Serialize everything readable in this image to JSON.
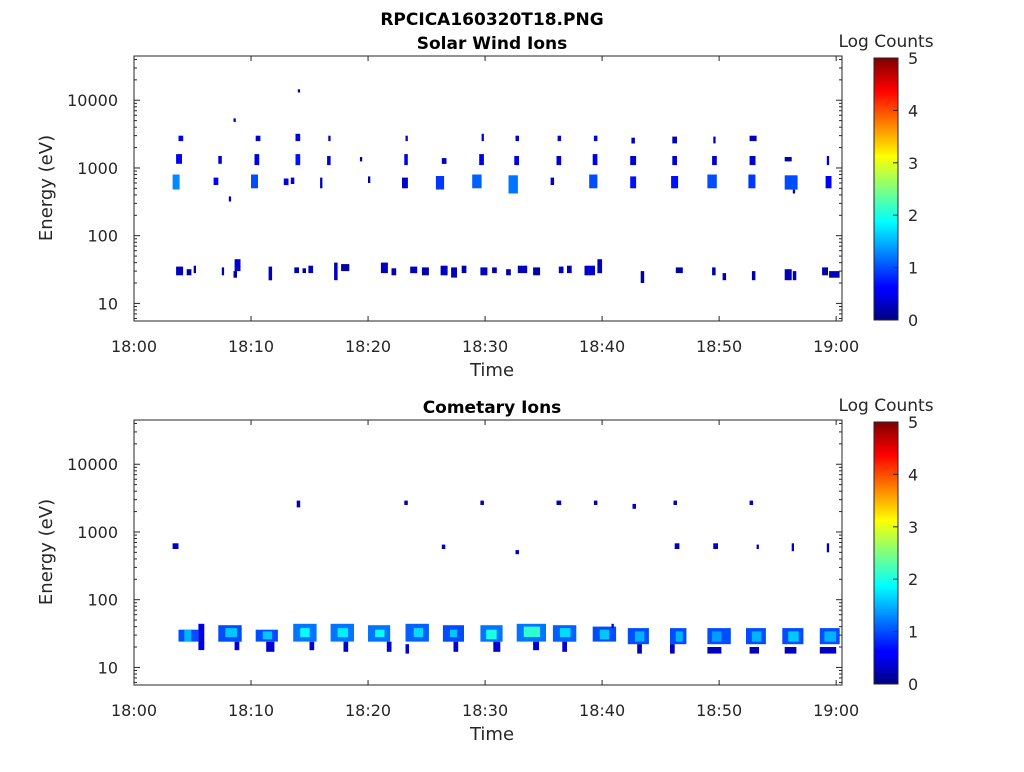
{
  "figure": {
    "title": "RPCICA160320T18.PNG"
  },
  "colorbar": {
    "label": "Log Counts",
    "min": 0,
    "max": 5,
    "ticks": [
      "0",
      "1",
      "2",
      "3",
      "4",
      "5"
    ],
    "colormap": "jet"
  },
  "chart_data": [
    {
      "type": "heatmap",
      "title": "Solar Wind Ions",
      "xlabel": "Time",
      "ylabel": "Energy (eV)",
      "x_ticks": [
        "18:00",
        "18:10",
        "18:20",
        "18:30",
        "18:40",
        "18:50",
        "19:00"
      ],
      "xlim_minutes": [
        0,
        60.5
      ],
      "y_scale": "log",
      "ylim": [
        5.5,
        45000
      ],
      "y_ticks": [
        {
          "value": 10,
          "label": "10"
        },
        {
          "value": 100,
          "label": "100"
        },
        {
          "value": 1000,
          "label": "1000"
        },
        {
          "value": 10000,
          "label": "10000"
        }
      ],
      "color_range": [
        0,
        5
      ],
      "cells": [
        [
          3.3,
          3.9,
          480,
          800,
          1.3
        ],
        [
          3.6,
          4.1,
          1150,
          1600,
          0.6
        ],
        [
          3.8,
          4.2,
          2500,
          3000,
          0.5
        ],
        [
          3.6,
          4.2,
          26,
          35,
          0.3
        ],
        [
          4.5,
          4.9,
          26,
          32,
          0.2
        ],
        [
          5.1,
          5.3,
          28,
          36,
          0.2
        ],
        [
          6.8,
          7.2,
          560,
          720,
          0.6
        ],
        [
          7.2,
          7.5,
          1150,
          1500,
          0.4
        ],
        [
          7.5,
          7.7,
          26,
          34,
          0.2
        ],
        [
          8.1,
          8.3,
          320,
          380,
          0.3
        ],
        [
          8.5,
          8.7,
          4800,
          5400,
          0.2
        ],
        [
          8.6,
          9.1,
          30,
          45,
          0.4
        ],
        [
          8.5,
          8.8,
          24,
          30,
          0.2
        ],
        [
          10.0,
          10.6,
          500,
          800,
          1.0
        ],
        [
          10.3,
          10.7,
          1100,
          1600,
          0.5
        ],
        [
          10.4,
          10.8,
          2500,
          3000,
          0.4
        ],
        [
          11.5,
          11.8,
          22,
          35,
          0.3
        ],
        [
          12.8,
          13.2,
          560,
          700,
          0.5
        ],
        [
          13.4,
          13.7,
          580,
          720,
          0.4
        ],
        [
          13.8,
          14.2,
          1100,
          1600,
          0.7
        ],
        [
          13.8,
          14.2,
          2500,
          3200,
          0.5
        ],
        [
          14.0,
          14.2,
          13000,
          14500,
          0.2
        ],
        [
          13.7,
          14.1,
          28,
          34,
          0.2
        ],
        [
          14.4,
          14.7,
          28,
          33,
          0.2
        ],
        [
          14.9,
          15.3,
          28,
          36,
          0.3
        ],
        [
          15.9,
          16.1,
          500,
          720,
          0.3
        ],
        [
          16.5,
          16.8,
          1100,
          1500,
          0.4
        ],
        [
          16.6,
          16.8,
          2500,
          3000,
          0.3
        ],
        [
          17.1,
          17.4,
          22,
          40,
          0.3
        ],
        [
          17.7,
          18.4,
          30,
          38,
          0.2
        ],
        [
          19.3,
          19.5,
          1250,
          1450,
          0.2
        ],
        [
          20.0,
          20.2,
          600,
          750,
          0.2
        ],
        [
          21.1,
          21.7,
          28,
          40,
          0.3
        ],
        [
          22.0,
          22.4,
          26,
          33,
          0.2
        ],
        [
          22.9,
          23.4,
          500,
          720,
          0.4
        ],
        [
          23.1,
          23.4,
          1100,
          1600,
          0.5
        ],
        [
          23.2,
          23.4,
          2500,
          3000,
          0.4
        ],
        [
          23.6,
          24.2,
          28,
          35,
          0.3
        ],
        [
          24.6,
          25.2,
          26,
          34,
          0.2
        ],
        [
          25.8,
          26.5,
          480,
          760,
          0.9
        ],
        [
          26.3,
          26.7,
          1150,
          1400,
          0.3
        ],
        [
          26.2,
          26.8,
          26,
          36,
          0.3
        ],
        [
          27.1,
          27.6,
          24,
          34,
          0.3
        ],
        [
          28.0,
          28.4,
          28,
          36,
          0.2
        ],
        [
          28.9,
          29.7,
          500,
          800,
          1.1
        ],
        [
          29.5,
          29.9,
          1100,
          1600,
          0.5
        ],
        [
          29.7,
          29.9,
          2500,
          3200,
          0.4
        ],
        [
          29.6,
          30.2,
          26,
          34,
          0.3
        ],
        [
          30.6,
          31.0,
          28,
          34,
          0.2
        ],
        [
          32.0,
          32.8,
          420,
          780,
          1.2
        ],
        [
          32.5,
          32.9,
          1100,
          1500,
          0.5
        ],
        [
          32.6,
          32.9,
          2500,
          3000,
          0.4
        ],
        [
          31.8,
          32.2,
          26,
          32,
          0.2
        ],
        [
          32.8,
          33.6,
          28,
          36,
          0.3
        ],
        [
          34.1,
          34.7,
          26,
          34,
          0.2
        ],
        [
          36.1,
          36.5,
          1100,
          1500,
          0.4
        ],
        [
          36.2,
          36.5,
          2500,
          3000,
          0.4
        ],
        [
          35.6,
          35.9,
          560,
          720,
          0.3
        ],
        [
          36.3,
          36.7,
          28,
          35,
          0.3
        ],
        [
          37.0,
          37.4,
          28,
          36,
          0.3
        ],
        [
          38.9,
          39.6,
          500,
          800,
          1.0
        ],
        [
          39.2,
          39.6,
          1100,
          1600,
          0.5
        ],
        [
          39.3,
          39.6,
          2500,
          3000,
          0.4
        ],
        [
          38.5,
          39.4,
          26,
          36,
          0.4
        ],
        [
          39.6,
          40.0,
          28,
          45,
          0.3
        ],
        [
          42.4,
          42.9,
          500,
          750,
          0.7
        ],
        [
          42.4,
          42.9,
          1100,
          1500,
          0.4
        ],
        [
          42.5,
          42.8,
          2300,
          2800,
          0.3
        ],
        [
          43.3,
          43.6,
          20,
          30,
          0.2
        ],
        [
          45.9,
          46.5,
          500,
          760,
          0.7
        ],
        [
          46.0,
          46.4,
          1100,
          1500,
          0.4
        ],
        [
          46.0,
          46.4,
          2300,
          2900,
          0.3
        ],
        [
          46.3,
          46.9,
          28,
          34,
          0.2
        ],
        [
          49.0,
          49.8,
          500,
          800,
          1.0
        ],
        [
          49.4,
          49.8,
          1100,
          1500,
          0.4
        ],
        [
          49.5,
          49.7,
          2300,
          2900,
          0.3
        ],
        [
          49.4,
          49.7,
          26,
          34,
          0.2
        ],
        [
          50.3,
          50.6,
          22,
          28,
          0.2
        ],
        [
          52.5,
          53.1,
          500,
          800,
          0.9
        ],
        [
          52.6,
          53.1,
          1100,
          1500,
          0.4
        ],
        [
          52.6,
          53.2,
          2500,
          3000,
          0.3
        ],
        [
          52.8,
          53.1,
          22,
          30,
          0.2
        ],
        [
          55.6,
          56.7,
          480,
          780,
          1.0
        ],
        [
          55.6,
          56.2,
          1250,
          1450,
          0.2
        ],
        [
          56.3,
          56.5,
          420,
          480,
          0.3
        ],
        [
          55.6,
          56.2,
          22,
          32,
          0.3
        ],
        [
          56.3,
          56.6,
          22,
          30,
          0.3
        ],
        [
          59.1,
          59.6,
          500,
          760,
          0.6
        ],
        [
          59.2,
          59.4,
          1100,
          1500,
          0.3
        ],
        [
          58.8,
          59.3,
          26,
          34,
          0.2
        ],
        [
          59.4,
          60.3,
          24,
          30,
          0.3
        ]
      ]
    },
    {
      "type": "heatmap",
      "title": "Cometary Ions",
      "xlabel": "Time",
      "ylabel": "Energy (eV)",
      "x_ticks": [
        "18:00",
        "18:10",
        "18:20",
        "18:30",
        "18:40",
        "18:50",
        "19:00"
      ],
      "xlim_minutes": [
        0,
        60.5
      ],
      "y_scale": "log",
      "ylim": [
        5.5,
        45000
      ],
      "y_ticks": [
        {
          "value": 10,
          "label": "10"
        },
        {
          "value": 100,
          "label": "100"
        },
        {
          "value": 1000,
          "label": "1000"
        },
        {
          "value": 10000,
          "label": "10000"
        }
      ],
      "color_range": [
        0,
        5
      ],
      "cells": [
        [
          3.3,
          3.8,
          560,
          680,
          0.3
        ],
        [
          13.9,
          14.2,
          2300,
          2900,
          0.3
        ],
        [
          23.1,
          23.4,
          2500,
          2900,
          0.3
        ],
        [
          29.6,
          29.9,
          2500,
          2900,
          0.3
        ],
        [
          36.1,
          36.5,
          2500,
          2900,
          0.3
        ],
        [
          39.3,
          39.6,
          2500,
          2900,
          0.3
        ],
        [
          42.6,
          42.9,
          2200,
          2600,
          0.3
        ],
        [
          46.1,
          46.4,
          2500,
          2900,
          0.3
        ],
        [
          52.6,
          52.9,
          2500,
          2900,
          0.3
        ],
        [
          26.3,
          26.6,
          560,
          650,
          0.3
        ],
        [
          32.6,
          32.9,
          470,
          540,
          0.3
        ],
        [
          46.2,
          46.6,
          560,
          680,
          0.3
        ],
        [
          49.5,
          49.9,
          560,
          680,
          0.3
        ],
        [
          53.2,
          53.4,
          560,
          650,
          0.3
        ],
        [
          56.2,
          56.4,
          520,
          680,
          0.3
        ],
        [
          59.2,
          59.4,
          500,
          680,
          0.3
        ],
        [
          3.8,
          5.5,
          24,
          36,
          1.0
        ],
        [
          4.3,
          4.9,
          24,
          36,
          1.5
        ],
        [
          5.5,
          6.0,
          18,
          44,
          0.5
        ],
        [
          7.2,
          9.2,
          24,
          42,
          1.0
        ],
        [
          7.8,
          8.8,
          28,
          38,
          1.6
        ],
        [
          8.6,
          9.0,
          18,
          24,
          0.4
        ],
        [
          10.4,
          12.3,
          24,
          36,
          1.0
        ],
        [
          11.0,
          11.8,
          26,
          34,
          1.6
        ],
        [
          11.3,
          12.0,
          17,
          24,
          0.4
        ],
        [
          13.6,
          15.6,
          24,
          44,
          1.2
        ],
        [
          14.2,
          15.0,
          28,
          38,
          1.9
        ],
        [
          15.0,
          15.4,
          18,
          24,
          0.4
        ],
        [
          16.8,
          18.8,
          24,
          44,
          1.2
        ],
        [
          17.4,
          18.3,
          28,
          38,
          1.8
        ],
        [
          17.9,
          18.3,
          17,
          24,
          0.4
        ],
        [
          20.0,
          21.9,
          24,
          42,
          1.2
        ],
        [
          20.6,
          21.4,
          28,
          36,
          1.9
        ],
        [
          21.6,
          22.0,
          17,
          24,
          0.4
        ],
        [
          23.2,
          25.2,
          24,
          44,
          1.1
        ],
        [
          23.9,
          24.7,
          28,
          38,
          1.7
        ],
        [
          23.2,
          23.5,
          16,
          22,
          0.4
        ],
        [
          26.4,
          28.2,
          24,
          42,
          1.0
        ],
        [
          27.0,
          27.6,
          28,
          36,
          1.6
        ],
        [
          27.3,
          27.7,
          17,
          24,
          0.4
        ],
        [
          29.6,
          31.5,
          24,
          42,
          1.2
        ],
        [
          30.1,
          31.0,
          26,
          36,
          2.0
        ],
        [
          30.7,
          31.3,
          17,
          24,
          0.4
        ],
        [
          32.7,
          35.2,
          24,
          44,
          1.2
        ],
        [
          33.3,
          34.7,
          28,
          40,
          2.1
        ],
        [
          34.1,
          34.6,
          18,
          24,
          0.4
        ],
        [
          35.8,
          37.8,
          24,
          42,
          1.1
        ],
        [
          36.4,
          37.3,
          28,
          38,
          1.7
        ],
        [
          36.6,
          37.0,
          17,
          24,
          0.4
        ],
        [
          39.2,
          41.2,
          24,
          40,
          1.0
        ],
        [
          39.8,
          40.6,
          26,
          36,
          1.6
        ],
        [
          40.8,
          41.0,
          38,
          44,
          0.4
        ],
        [
          42.2,
          44.0,
          22,
          38,
          1.0
        ],
        [
          42.8,
          43.6,
          24,
          34,
          1.5
        ],
        [
          43.0,
          43.4,
          16,
          22,
          0.3
        ],
        [
          45.8,
          47.2,
          22,
          38,
          1.0
        ],
        [
          46.3,
          46.9,
          24,
          34,
          1.5
        ],
        [
          45.8,
          46.2,
          16,
          22,
          0.3
        ],
        [
          49.0,
          51.0,
          22,
          38,
          1.0
        ],
        [
          49.4,
          50.2,
          24,
          34,
          1.4
        ],
        [
          49.0,
          50.2,
          16,
          20,
          0.3
        ],
        [
          52.3,
          54.0,
          22,
          38,
          1.0
        ],
        [
          52.8,
          53.6,
          24,
          34,
          1.5
        ],
        [
          52.6,
          53.4,
          16,
          20,
          0.3
        ],
        [
          55.4,
          57.2,
          22,
          38,
          1.0
        ],
        [
          55.9,
          56.8,
          24,
          34,
          1.6
        ],
        [
          55.6,
          56.6,
          16,
          20,
          0.3
        ],
        [
          58.6,
          60.3,
          22,
          38,
          1.0
        ],
        [
          59.0,
          60.0,
          24,
          34,
          1.5
        ],
        [
          58.6,
          60.0,
          16,
          20,
          0.3
        ]
      ]
    }
  ]
}
